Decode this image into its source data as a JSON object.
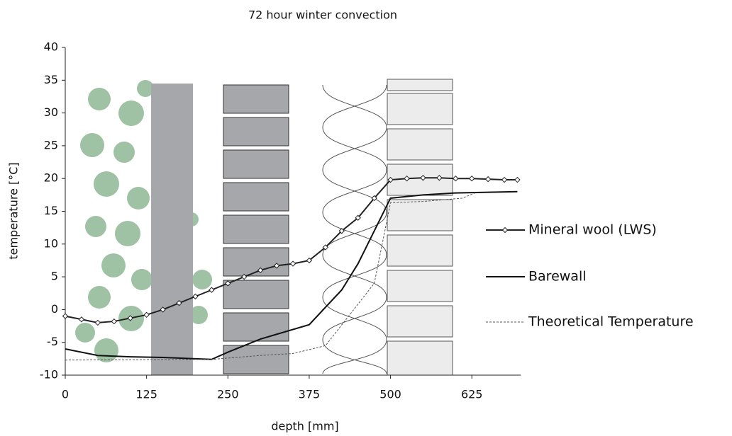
{
  "chart_data": {
    "type": "line",
    "title": "72 hour winter convection",
    "x_label": "depth [mm]",
    "y_label": "temperature [°C]",
    "xlim": [
      0,
      700
    ],
    "xticks": [
      0,
      125,
      250,
      375,
      500,
      625
    ],
    "ylim": [
      -10,
      40
    ],
    "yticks": [
      -10,
      -5,
      0,
      5,
      10,
      15,
      20,
      25,
      30,
      35,
      40
    ],
    "series": [
      {
        "name": "Mineral wool (LWS)",
        "color": "#222222",
        "marker": "diamond",
        "x": [
          0,
          25,
          50,
          75,
          100,
          125,
          150,
          175,
          200,
          225,
          250,
          275,
          300,
          325,
          350,
          375,
          400,
          425,
          450,
          475,
          500,
          525,
          550,
          575,
          600,
          625,
          650,
          675,
          695
        ],
        "values": [
          -1,
          -1.5,
          -2,
          -1.8,
          -1.3,
          -0.8,
          0,
          1,
          2,
          3,
          4,
          5,
          6,
          6.7,
          7,
          7.5,
          9.5,
          12,
          14,
          17,
          19.8,
          20,
          20.1,
          20.1,
          20,
          20,
          19.9,
          19.8,
          19.8
        ]
      },
      {
        "name": "Barewall",
        "color": "#111111",
        "x": [
          0,
          50,
          100,
          150,
          200,
          225,
          250,
          300,
          375,
          425,
          450,
          500,
          550,
          600,
          695
        ],
        "values": [
          -6,
          -7,
          -7.2,
          -7.3,
          -7.5,
          -7.6,
          -6.5,
          -4.5,
          -2.3,
          3,
          7,
          17,
          17.5,
          17.8,
          18
        ]
      },
      {
        "name": "Theoretical Temperature",
        "color": "#555555",
        "dash": "3,2",
        "x": [
          0,
          225,
          300,
          350,
          400,
          475,
          500,
          550,
          610,
          630
        ],
        "values": [
          -7.7,
          -7.6,
          -7,
          -6.7,
          -5.5,
          4,
          16.3,
          16.5,
          17,
          17.8
        ]
      }
    ]
  }
}
